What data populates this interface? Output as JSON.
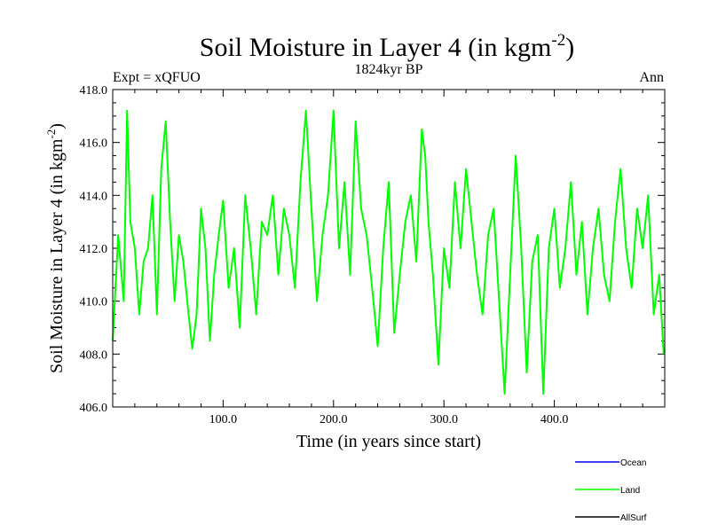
{
  "chart_data": {
    "type": "line",
    "title": "Soil Moisture in Layer 4 (in kgm",
    "title_superscript": "-2",
    "title_close": ")",
    "subtitle": "1824kyr BP",
    "left_label": "Expt = xQFUO",
    "right_label": "Ann",
    "xlabel": "Time (in years since start)",
    "ylabel": "Soil Moisture in Layer 4 (in kgm",
    "ylabel_superscript": "-2",
    "ylabel_close": ")",
    "xlim": [
      0,
      500
    ],
    "ylim": [
      406,
      418
    ],
    "x_ticks": [
      100,
      200,
      300,
      400
    ],
    "x_tick_labels": [
      "100.0",
      "200.0",
      "300.0",
      "400.0"
    ],
    "y_ticks": [
      406,
      408,
      410,
      412,
      414,
      416,
      418
    ],
    "y_tick_labels": [
      "406.0",
      "408.0",
      "410.0",
      "412.0",
      "414.0",
      "416.0",
      "418.0"
    ],
    "legend": [
      {
        "name": "Ocean",
        "color": "#0000ff"
      },
      {
        "name": "Land",
        "color": "#00ff00"
      },
      {
        "name": "AllSurf",
        "color": "#000000"
      }
    ],
    "series": [
      {
        "name": "Land",
        "color": "#00ff00",
        "x": [
          0,
          5,
          10,
          13,
          16,
          20,
          24,
          28,
          32,
          36,
          40,
          44,
          48,
          52,
          56,
          60,
          64,
          68,
          72,
          76,
          80,
          84,
          88,
          92,
          96,
          100,
          105,
          110,
          115,
          120,
          125,
          130,
          135,
          140,
          145,
          150,
          155,
          160,
          165,
          170,
          175,
          180,
          185,
          190,
          195,
          200,
          205,
          210,
          215,
          220,
          225,
          230,
          235,
          240,
          245,
          250,
          255,
          260,
          265,
          270,
          275,
          280,
          283,
          286,
          290,
          295,
          300,
          305,
          310,
          315,
          320,
          325,
          330,
          335,
          340,
          345,
          350,
          355,
          360,
          365,
          370,
          375,
          380,
          385,
          390,
          395,
          400,
          405,
          410,
          415,
          420,
          425,
          430,
          435,
          440,
          445,
          450,
          455,
          460,
          465,
          470,
          475,
          480,
          485,
          490,
          495,
          499
        ],
        "y": [
          408.5,
          412.5,
          410.0,
          417.2,
          413.0,
          412.0,
          409.5,
          411.5,
          412.0,
          414.0,
          409.5,
          415.0,
          416.8,
          413.0,
          410.0,
          412.5,
          411.5,
          409.8,
          408.2,
          409.5,
          413.5,
          412.0,
          408.5,
          411.0,
          412.5,
          413.8,
          410.5,
          412.0,
          409.0,
          414.0,
          412.0,
          409.5,
          413.0,
          412.5,
          414.0,
          411.0,
          413.5,
          412.5,
          410.5,
          414.5,
          417.2,
          413.5,
          410.0,
          412.5,
          414.0,
          417.2,
          412.0,
          414.5,
          411.0,
          416.8,
          413.5,
          412.5,
          410.5,
          408.3,
          412.0,
          414.5,
          408.8,
          411.0,
          413.0,
          414.0,
          411.5,
          416.5,
          415.5,
          413.0,
          411.0,
          407.6,
          412.0,
          410.5,
          414.5,
          412.0,
          415.0,
          413.0,
          411.0,
          409.5,
          412.5,
          413.5,
          410.0,
          406.5,
          411.0,
          415.5,
          412.0,
          407.3,
          411.5,
          412.5,
          406.5,
          412.0,
          413.5,
          410.5,
          412.0,
          414.5,
          411.0,
          413.0,
          409.5,
          412.0,
          413.5,
          411.0,
          410.0,
          413.0,
          415.0,
          412.0,
          410.5,
          413.5,
          412.0,
          414.0,
          409.5,
          411.0,
          408.0
        ]
      }
    ]
  }
}
